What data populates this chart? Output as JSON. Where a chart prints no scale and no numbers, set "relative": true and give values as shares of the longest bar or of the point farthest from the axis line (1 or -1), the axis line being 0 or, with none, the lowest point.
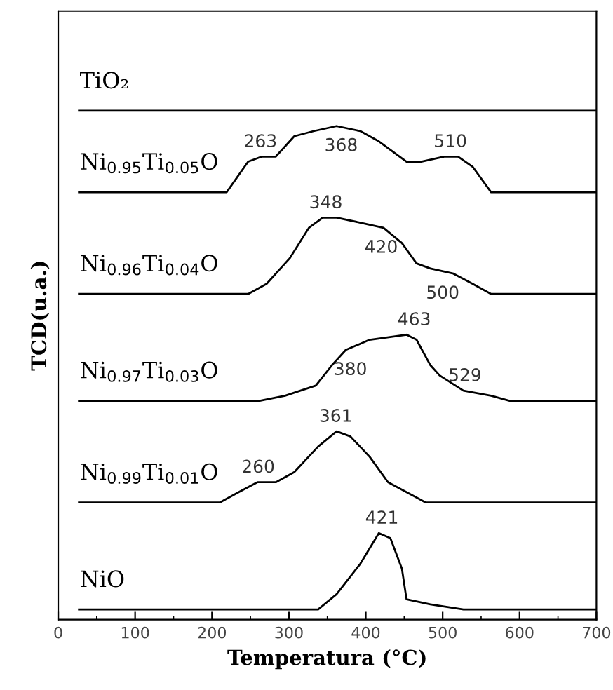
{
  "chart_data": {
    "type": "line",
    "xlabel": "Temperatura (°C)",
    "ylabel": "TCD(u.a.)",
    "relative": true,
    "grid": false,
    "xlim": [
      0,
      700
    ],
    "xticks": [
      0,
      {
        "value": 50,
        "label": null
      },
      100,
      {
        "value": 150,
        "label": null
      },
      200,
      {
        "value": 250,
        "label": null
      },
      300,
      {
        "value": 350,
        "label": null
      },
      400,
      {
        "value": 450,
        "label": null
      },
      500,
      {
        "value": 550,
        "label": null
      },
      600,
      {
        "value": 650,
        "label": null
      },
      700
    ],
    "series": [
      {
        "name": "TiO₂",
        "color": "#000000",
        "x": [
          27,
          700
        ],
        "values": [
          1,
          1
        ]
      },
      {
        "name": "Ni$_{0.95}$Ti$_{0.05}$O",
        "color": "#000000",
        "x": [
          27,
          219,
          247,
          265,
          283,
          307,
          332,
          362,
          393,
          417,
          453,
          472,
          502,
          520,
          539,
          563,
          594,
          700
        ],
        "values": [
          0.84,
          0.84,
          0.9,
          0.91,
          0.91,
          0.95,
          0.96,
          0.97,
          0.96,
          0.94,
          0.9,
          0.9,
          0.91,
          0.91,
          0.89,
          0.84,
          0.84,
          0.84
        ]
      },
      {
        "name": "Ni$_{0.96}$Ti$_{0.04}$O",
        "color": "#000000",
        "x": [
          27,
          247,
          271,
          301,
          326,
          344,
          362,
          393,
          423,
          447,
          466,
          484,
          514,
          539,
          563,
          600,
          700
        ],
        "values": [
          0.64,
          0.64,
          0.66,
          0.71,
          0.77,
          0.79,
          0.79,
          0.78,
          0.77,
          0.74,
          0.7,
          0.69,
          0.68,
          0.66,
          0.64,
          0.64,
          0.64
        ]
      },
      {
        "name": "Ni$_{0.97}$Ti$_{0.03}$O",
        "color": "#000000",
        "x": [
          27,
          262,
          295,
          335,
          356,
          374,
          405,
          453,
          466,
          484,
          496,
          527,
          563,
          587,
          700
        ],
        "values": [
          0.43,
          0.43,
          0.44,
          0.46,
          0.5,
          0.53,
          0.55,
          0.56,
          0.55,
          0.5,
          0.48,
          0.45,
          0.44,
          0.43,
          0.43
        ]
      },
      {
        "name": "Ni$_{0.99}$Ti$_{0.01}$O",
        "color": "#000000",
        "x": [
          27,
          210,
          234,
          259,
          283,
          307,
          338,
          362,
          380,
          405,
          429,
          466,
          478,
          700
        ],
        "values": [
          0.23,
          0.23,
          0.25,
          0.27,
          0.27,
          0.29,
          0.34,
          0.37,
          0.36,
          0.32,
          0.27,
          0.24,
          0.23,
          0.23
        ]
      },
      {
        "name": "NiO",
        "color": "#000000",
        "x": [
          27,
          338,
          362,
          393,
          417,
          432,
          447,
          453,
          484,
          527,
          700
        ],
        "values": [
          0.02,
          0.02,
          0.05,
          0.11,
          0.17,
          0.16,
          0.1,
          0.04,
          0.03,
          0.02,
          0.02
        ]
      }
    ],
    "annotations": [
      {
        "text": "263",
        "x": 263,
        "y": 0.91
      },
      {
        "text": "368",
        "x": 368,
        "y": 0.97
      },
      {
        "text": "510",
        "x": 510,
        "y": 0.91
      },
      {
        "text": "348",
        "x": 348,
        "y": 0.79
      },
      {
        "text": "420",
        "x": 420,
        "y": 0.77
      },
      {
        "text": "500",
        "x": 500,
        "y": 0.68
      },
      {
        "text": "380",
        "x": 380,
        "y": 0.53
      },
      {
        "text": "463",
        "x": 463,
        "y": 0.56
      },
      {
        "text": "529",
        "x": 529,
        "y": 0.45
      },
      {
        "text": "260",
        "x": 260,
        "y": 0.27
      },
      {
        "text": "361",
        "x": 361,
        "y": 0.37
      },
      {
        "text": "421",
        "x": 421,
        "y": 0.17
      }
    ]
  }
}
